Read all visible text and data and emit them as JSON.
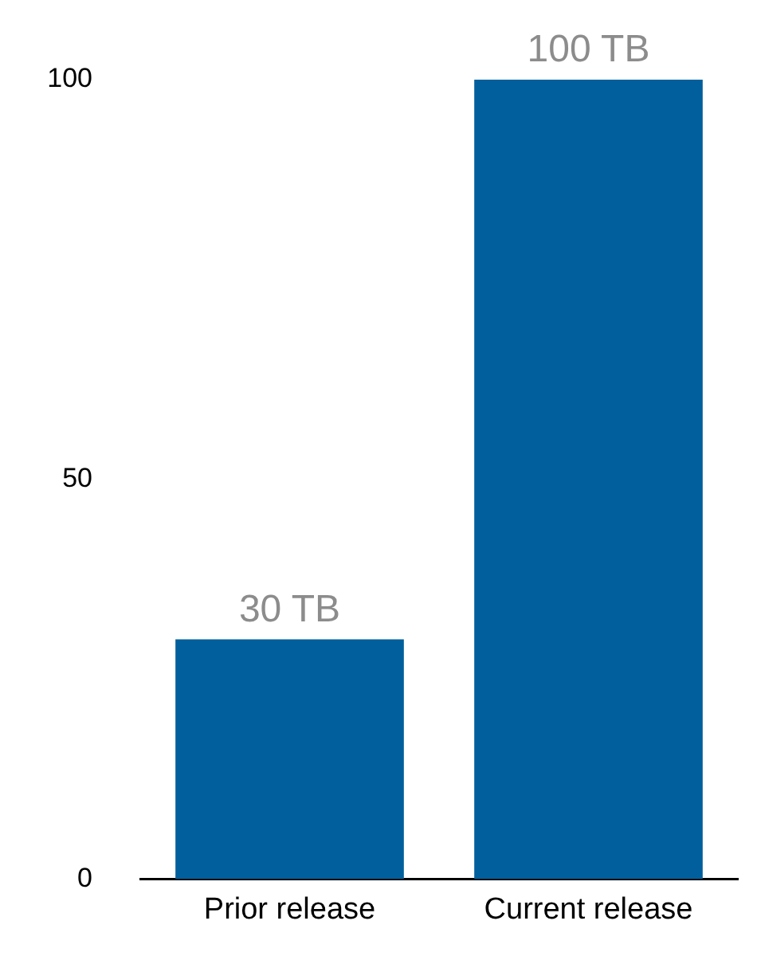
{
  "chart_data": {
    "type": "bar",
    "categories": [
      "Prior release",
      "Current release"
    ],
    "values": [
      30,
      100
    ],
    "value_labels": [
      "30 TB",
      "100 TB"
    ],
    "color": "#005f9c",
    "ylim": [
      0,
      100
    ],
    "yticks": [
      0,
      50,
      100
    ],
    "grid": false,
    "legend": false
  }
}
